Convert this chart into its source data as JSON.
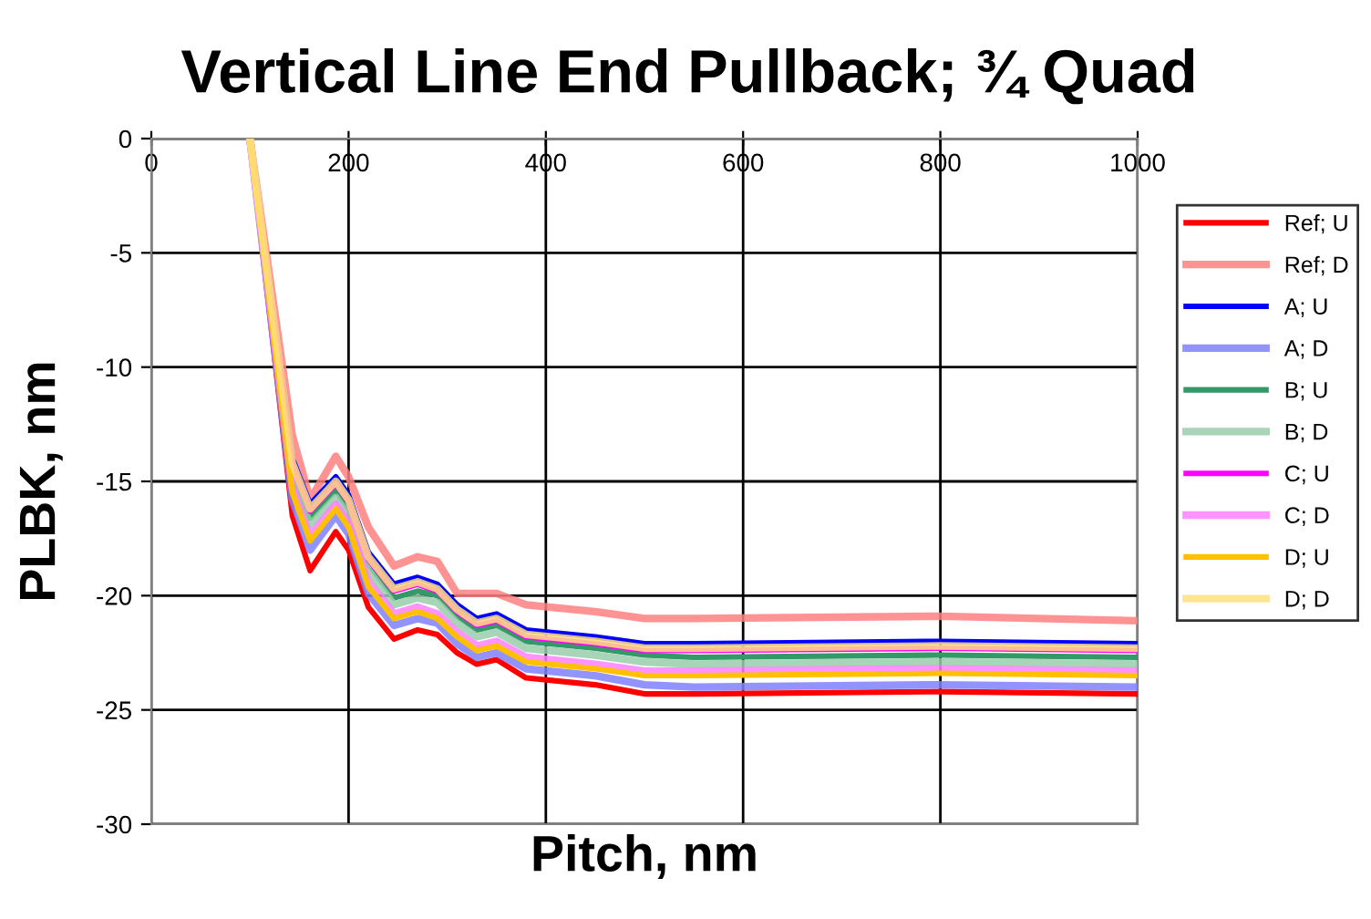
{
  "chart_data": {
    "type": "line",
    "title": "Vertical Line End Pullback; ¾ Quad",
    "xlabel": "Pitch, nm",
    "ylabel": "PLBK, nm",
    "x": [
      100,
      143,
      161,
      187,
      200,
      220,
      246,
      270,
      290,
      310,
      330,
      350,
      380,
      450,
      500,
      550,
      800,
      1000
    ],
    "series": [
      {
        "name": "Ref; U",
        "color": "#ff0000",
        "values": [
          0,
          -16.5,
          -18.9,
          -17.2,
          -18,
          -20.5,
          -21.9,
          -21.5,
          -21.7,
          -22.5,
          -23,
          -22.8,
          -23.6,
          -23.9,
          -24.3,
          -24.3,
          -24.2,
          -24.3
        ]
      },
      {
        "name": "Ref; D",
        "color": "#ff8080",
        "values": [
          0,
          -13,
          -15.8,
          -13.9,
          -14.8,
          -17,
          -18.7,
          -18.3,
          -18.5,
          -19.9,
          -19.9,
          -19.9,
          -20.4,
          -20.7,
          -21.0,
          -21.0,
          -20.9,
          -21.1
        ]
      },
      {
        "name": "A; U",
        "color": "#0000ff",
        "values": [
          0,
          -14,
          -16.0,
          -14.8,
          -15.6,
          -18.1,
          -19.5,
          -19.2,
          -19.5,
          -20.4,
          -21,
          -20.8,
          -21.5,
          -21.8,
          -22.1,
          -22.1,
          -22.0,
          -22.1
        ]
      },
      {
        "name": "A; D",
        "color": "#8080ff",
        "values": [
          0,
          -15.8,
          -18.0,
          -16.5,
          -17.3,
          -19.9,
          -21.3,
          -21.0,
          -21.2,
          -22.1,
          -22.7,
          -22.5,
          -23.2,
          -23.5,
          -23.9,
          -24.0,
          -23.9,
          -24.0
        ]
      },
      {
        "name": "B; U",
        "color": "#339966",
        "values": [
          0,
          -14.6,
          -16.6,
          -15.4,
          -16.2,
          -18.6,
          -20.1,
          -19.8,
          -20,
          -20.9,
          -21.5,
          -21.3,
          -22,
          -22.3,
          -22.6,
          -22.7,
          -22.6,
          -22.7
        ]
      },
      {
        "name": "B; D",
        "color": "#99ccaa",
        "values": [
          0,
          -14.9,
          -16.9,
          -15.7,
          -16.5,
          -18.9,
          -20.4,
          -20.1,
          -20.3,
          -21.2,
          -21.8,
          -21.6,
          -22.3,
          -22.6,
          -22.9,
          -23.0,
          -22.9,
          -23.0
        ]
      },
      {
        "name": "C; U",
        "color": "#ff00ff",
        "values": [
          0,
          -14.3,
          -16.3,
          -15.1,
          -15.9,
          -18.4,
          -19.8,
          -19.5,
          -19.8,
          -20.7,
          -21.3,
          -21.1,
          -21.8,
          -22.1,
          -22.4,
          -22.4,
          -22.3,
          -22.4
        ]
      },
      {
        "name": "C; D",
        "color": "#ff80ff",
        "values": [
          0,
          -15.3,
          -17.4,
          -16.0,
          -16.8,
          -19.4,
          -20.8,
          -20.5,
          -20.8,
          -21.6,
          -22.2,
          -22,
          -22.7,
          -23,
          -23.3,
          -23.3,
          -23.2,
          -23.3
        ]
      },
      {
        "name": "D; U",
        "color": "#ffc000",
        "values": [
          0,
          -15.5,
          -17.6,
          -16.2,
          -17.0,
          -19.6,
          -21.0,
          -20.7,
          -21.0,
          -21.8,
          -22.4,
          -22.2,
          -22.9,
          -23.2,
          -23.5,
          -23.5,
          -23.4,
          -23.5
        ]
      },
      {
        "name": "D; D",
        "color": "#ffe080",
        "values": [
          0,
          -14.2,
          -16.2,
          -15.0,
          -15.8,
          -18.3,
          -19.7,
          -19.4,
          -19.7,
          -20.6,
          -21.2,
          -21.0,
          -21.7,
          -22.0,
          -22.3,
          -22.3,
          -22.2,
          -22.3
        ]
      }
    ],
    "xlim": [
      0,
      1000
    ],
    "xticks": [
      0,
      200,
      400,
      600,
      800,
      1000
    ],
    "ylim": [
      -30,
      0
    ],
    "yticks": [
      -30,
      -25,
      -20,
      -15,
      -10,
      -5,
      0
    ],
    "grid": true,
    "legend": "right",
    "marker": "none",
    "line_style": "solid"
  }
}
